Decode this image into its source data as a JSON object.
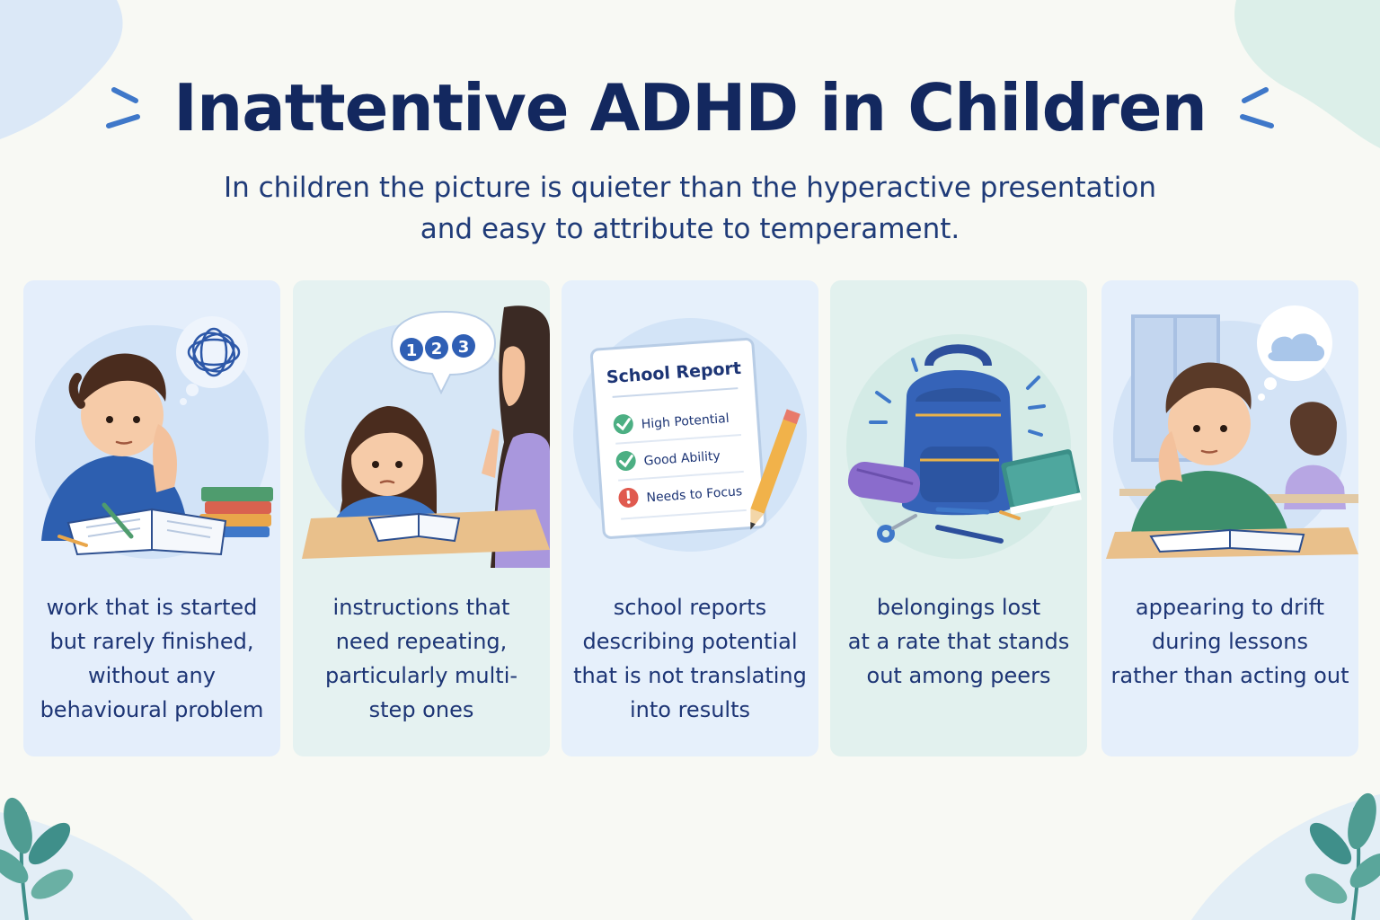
{
  "title": "Inattentive ADHD in Children",
  "subtitle_lines": [
    "In children the picture is quieter than the hyperactive presentation",
    "and easy to attribute to temperament."
  ],
  "cards": [
    {
      "caption": [
        "work that is started",
        "but rarely finished,",
        "without any",
        "behavioural problem"
      ]
    },
    {
      "caption": [
        "instructions that",
        "need repeating,",
        "particularly multi-",
        "step ones"
      ],
      "bubble_numbers": [
        "1",
        "2",
        "3"
      ]
    },
    {
      "caption": [
        "school reports",
        "describing potential",
        "that is not translating",
        "into results"
      ],
      "report": {
        "title": "School Report",
        "items": [
          "High Potential",
          "Good Ability",
          "Needs to Focus"
        ]
      }
    },
    {
      "caption": [
        "belongings lost",
        "at a rate that stands",
        "out among peers"
      ]
    },
    {
      "caption": [
        "appearing to drift",
        "during lessons",
        "rather than acting out"
      ]
    }
  ],
  "colors": {
    "title": "#13285f",
    "text": "#1d3575",
    "accent_blue": "#3f78c9",
    "check_green": "#4caf83",
    "alert_red": "#e05a4f",
    "leaf_teal": "#3f8f8a"
  }
}
